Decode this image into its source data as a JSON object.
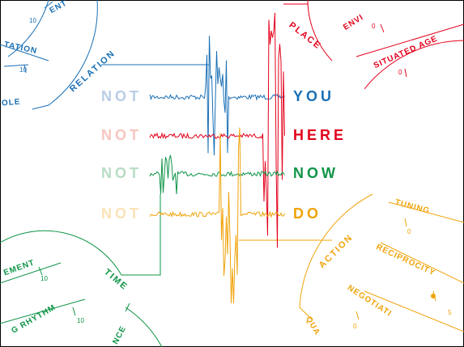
{
  "rows": [
    {
      "prefix": "NOT",
      "word": "YOU"
    },
    {
      "prefix": "NOT",
      "word": "HERE"
    },
    {
      "prefix": "NOT",
      "word": "NOW"
    },
    {
      "prefix": "NOT",
      "word": "DO"
    }
  ],
  "quadrants": {
    "relation": {
      "title": "RELATION",
      "labels": [
        "ENT",
        "TATION",
        "OLE"
      ],
      "ticks": [
        10,
        10
      ]
    },
    "place": {
      "title": "PLACE",
      "labels": [
        "ENVI",
        "SITUATED AGE"
      ],
      "ticks": [
        0,
        0
      ]
    },
    "time": {
      "title": "TIME",
      "labels": [
        "EMENT",
        "G RHYTHM",
        "NCE"
      ],
      "ticks": [
        10,
        10
      ]
    },
    "action": {
      "title": "ACTION",
      "labels": [
        "TUNING",
        "RECIPROCITY",
        "NEGOTIATI",
        "QUA"
      ],
      "ticks": [
        0,
        5,
        0
      ]
    }
  }
}
